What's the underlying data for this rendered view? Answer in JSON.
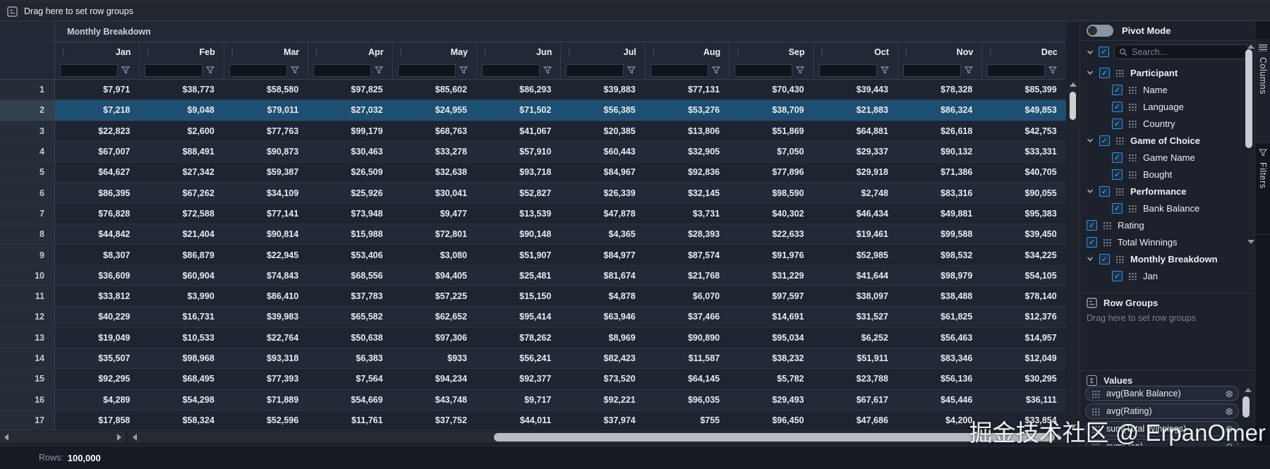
{
  "toolbar": {
    "drag_hint": "Drag here to set row groups"
  },
  "grid": {
    "group_header": "Monthly Breakdown",
    "months": [
      "Jan",
      "Feb",
      "Mar",
      "Apr",
      "May",
      "Jun",
      "Jul",
      "Aug",
      "Sep",
      "Oct",
      "Nov",
      "Dec"
    ],
    "selected_row": 2,
    "rows": [
      {
        "n": "1",
        "values": [
          "$7,971",
          "$38,773",
          "$58,580",
          "$97,825",
          "$85,602",
          "$86,293",
          "$39,883",
          "$77,131",
          "$70,430",
          "$39,443",
          "$78,328",
          "$85,399"
        ]
      },
      {
        "n": "2",
        "values": [
          "$7,218",
          "$9,048",
          "$79,011",
          "$27,032",
          "$24,955",
          "$71,502",
          "$56,385",
          "$53,276",
          "$38,709",
          "$21,883",
          "$86,324",
          "$49,853"
        ]
      },
      {
        "n": "3",
        "values": [
          "$22,823",
          "$2,600",
          "$77,763",
          "$99,179",
          "$68,763",
          "$41,067",
          "$20,385",
          "$13,806",
          "$51,869",
          "$64,881",
          "$26,618",
          "$42,753"
        ]
      },
      {
        "n": "4",
        "values": [
          "$67,007",
          "$88,491",
          "$90,873",
          "$30,463",
          "$33,278",
          "$57,910",
          "$60,443",
          "$32,905",
          "$7,050",
          "$29,337",
          "$90,132",
          "$33,331"
        ]
      },
      {
        "n": "5",
        "values": [
          "$64,627",
          "$27,342",
          "$59,387",
          "$26,509",
          "$32,638",
          "$93,718",
          "$84,967",
          "$92,836",
          "$77,896",
          "$29,918",
          "$71,386",
          "$40,705"
        ]
      },
      {
        "n": "6",
        "values": [
          "$86,395",
          "$67,262",
          "$34,109",
          "$25,926",
          "$30,041",
          "$52,827",
          "$26,339",
          "$32,145",
          "$98,590",
          "$2,748",
          "$83,316",
          "$90,055"
        ]
      },
      {
        "n": "7",
        "values": [
          "$76,828",
          "$72,588",
          "$77,141",
          "$73,948",
          "$9,477",
          "$13,539",
          "$47,878",
          "$3,731",
          "$40,302",
          "$46,434",
          "$49,881",
          "$95,383"
        ]
      },
      {
        "n": "8",
        "values": [
          "$44,842",
          "$21,404",
          "$90,814",
          "$15,988",
          "$72,801",
          "$90,148",
          "$4,365",
          "$28,393",
          "$22,633",
          "$19,461",
          "$99,588",
          "$39,450"
        ]
      },
      {
        "n": "9",
        "values": [
          "$8,307",
          "$86,879",
          "$22,945",
          "$53,406",
          "$3,080",
          "$51,907",
          "$84,977",
          "$87,574",
          "$91,976",
          "$52,985",
          "$98,532",
          "$34,225"
        ]
      },
      {
        "n": "10",
        "values": [
          "$36,609",
          "$60,904",
          "$74,843",
          "$68,556",
          "$94,405",
          "$25,481",
          "$81,674",
          "$21,768",
          "$31,229",
          "$41,644",
          "$98,979",
          "$54,105"
        ]
      },
      {
        "n": "11",
        "values": [
          "$33,812",
          "$3,990",
          "$86,410",
          "$37,783",
          "$57,225",
          "$15,150",
          "$4,878",
          "$6,070",
          "$97,597",
          "$38,097",
          "$38,488",
          "$78,140"
        ]
      },
      {
        "n": "12",
        "values": [
          "$40,229",
          "$16,731",
          "$39,983",
          "$65,582",
          "$62,652",
          "$95,414",
          "$63,946",
          "$37,466",
          "$14,691",
          "$31,527",
          "$61,825",
          "$12,376"
        ]
      },
      {
        "n": "13",
        "values": [
          "$19,049",
          "$10,533",
          "$22,764",
          "$50,638",
          "$97,306",
          "$78,262",
          "$8,969",
          "$90,890",
          "$95,034",
          "$6,252",
          "$56,463",
          "$14,957"
        ]
      },
      {
        "n": "14",
        "values": [
          "$35,507",
          "$98,968",
          "$93,318",
          "$6,383",
          "$933",
          "$56,241",
          "$82,423",
          "$11,587",
          "$38,232",
          "$51,911",
          "$83,346",
          "$12,049"
        ]
      },
      {
        "n": "15",
        "values": [
          "$92,295",
          "$68,495",
          "$77,393",
          "$7,564",
          "$94,234",
          "$92,377",
          "$73,520",
          "$64,145",
          "$5,782",
          "$23,788",
          "$56,136",
          "$30,295"
        ]
      },
      {
        "n": "16",
        "values": [
          "$4,289",
          "$54,298",
          "$71,889",
          "$54,669",
          "$43,748",
          "$9,717",
          "$92,221",
          "$96,035",
          "$29,493",
          "$67,617",
          "$45,446",
          "$36,111"
        ]
      },
      {
        "n": "17",
        "values": [
          "$17,858",
          "$58,324",
          "$52,596",
          "$11,761",
          "$37,752",
          "$44,011",
          "$37,974",
          "$755",
          "$96,450",
          "$47,686",
          "$4,200",
          "$33,854"
        ]
      }
    ]
  },
  "sidebar": {
    "pivot_mode_label": "Pivot Mode",
    "pivot_mode_on": false,
    "search_placeholder": "Search...",
    "tree": {
      "items": [
        {
          "label": "Participant",
          "level": 0,
          "group": true,
          "checked": true
        },
        {
          "label": "Name",
          "level": 1,
          "group": false,
          "checked": true
        },
        {
          "label": "Language",
          "level": 1,
          "group": false,
          "checked": true
        },
        {
          "label": "Country",
          "level": 1,
          "group": false,
          "checked": true
        },
        {
          "label": "Game of Choice",
          "level": 0,
          "group": true,
          "checked": true
        },
        {
          "label": "Game Name",
          "level": 1,
          "group": false,
          "checked": true
        },
        {
          "label": "Bought",
          "level": 1,
          "group": false,
          "checked": true
        },
        {
          "label": "Performance",
          "level": 0,
          "group": true,
          "checked": true
        },
        {
          "label": "Bank Balance",
          "level": 1,
          "group": false,
          "checked": true
        },
        {
          "label": "Rating",
          "level": 0,
          "group": false,
          "checked": true
        },
        {
          "label": "Total Winnings",
          "level": 0,
          "group": false,
          "checked": true
        },
        {
          "label": "Monthly Breakdown",
          "level": 0,
          "group": true,
          "checked": true
        },
        {
          "label": "Jan",
          "level": 1,
          "group": false,
          "checked": true
        }
      ]
    },
    "row_groups": {
      "title": "Row Groups",
      "hint": "Drag here to set row groups"
    },
    "values": {
      "title": "Values",
      "pills": [
        "avg(Bank Balance)",
        "avg(Rating)",
        "sum(Total Winnings)",
        "sum(Jan)"
      ]
    }
  },
  "side_tabs": [
    {
      "label": "Columns",
      "selected": true
    },
    {
      "label": "Filters",
      "selected": false
    }
  ],
  "status_bar": {
    "rows_label": "Rows:",
    "rows_value": "100,000"
  },
  "watermark": "掘金技术社区 @ ErpanOmer",
  "icons": {
    "column_menu": "⋮",
    "remove": "⊗",
    "sigma": "Σ",
    "check": "✓"
  },
  "colors": {
    "accent": "#2196f3",
    "selected_row": "#1d4f72",
    "header_bg": "#222835",
    "row_odd": "#1e2430",
    "row_even": "#232936",
    "sidebar_bg": "#1c212b",
    "text": "#e8ebf0"
  }
}
